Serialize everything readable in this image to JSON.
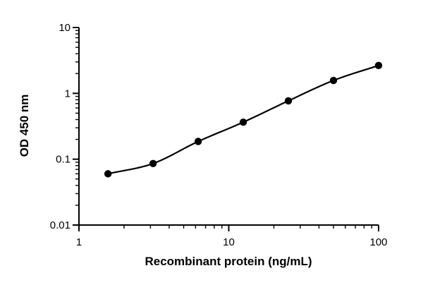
{
  "chart_data": {
    "type": "scatter",
    "title": "",
    "xlabel": "Recombinant protein (ng/mL)",
    "ylabel": "OD 450 nm",
    "xscale": "log",
    "yscale": "log",
    "xlim": [
      1,
      100
    ],
    "ylim": [
      0.01,
      10
    ],
    "grid": false,
    "x_ticks": [
      {
        "value": 1,
        "label": "1"
      },
      {
        "value": 10,
        "label": "10"
      },
      {
        "value": 100,
        "label": "100"
      }
    ],
    "y_ticks": [
      {
        "value": 0.01,
        "label": "0.01"
      },
      {
        "value": 0.1,
        "label": "0.1"
      },
      {
        "value": 1,
        "label": "1"
      },
      {
        "value": 10,
        "label": "10"
      }
    ],
    "series": [
      {
        "name": "Recombinant protein",
        "x": [
          1.5625,
          3.125,
          6.25,
          12.5,
          25,
          50,
          100
        ],
        "y": [
          0.06,
          0.086,
          0.186,
          0.365,
          0.77,
          1.57,
          2.65
        ],
        "fit": "4PL curve"
      }
    ]
  }
}
